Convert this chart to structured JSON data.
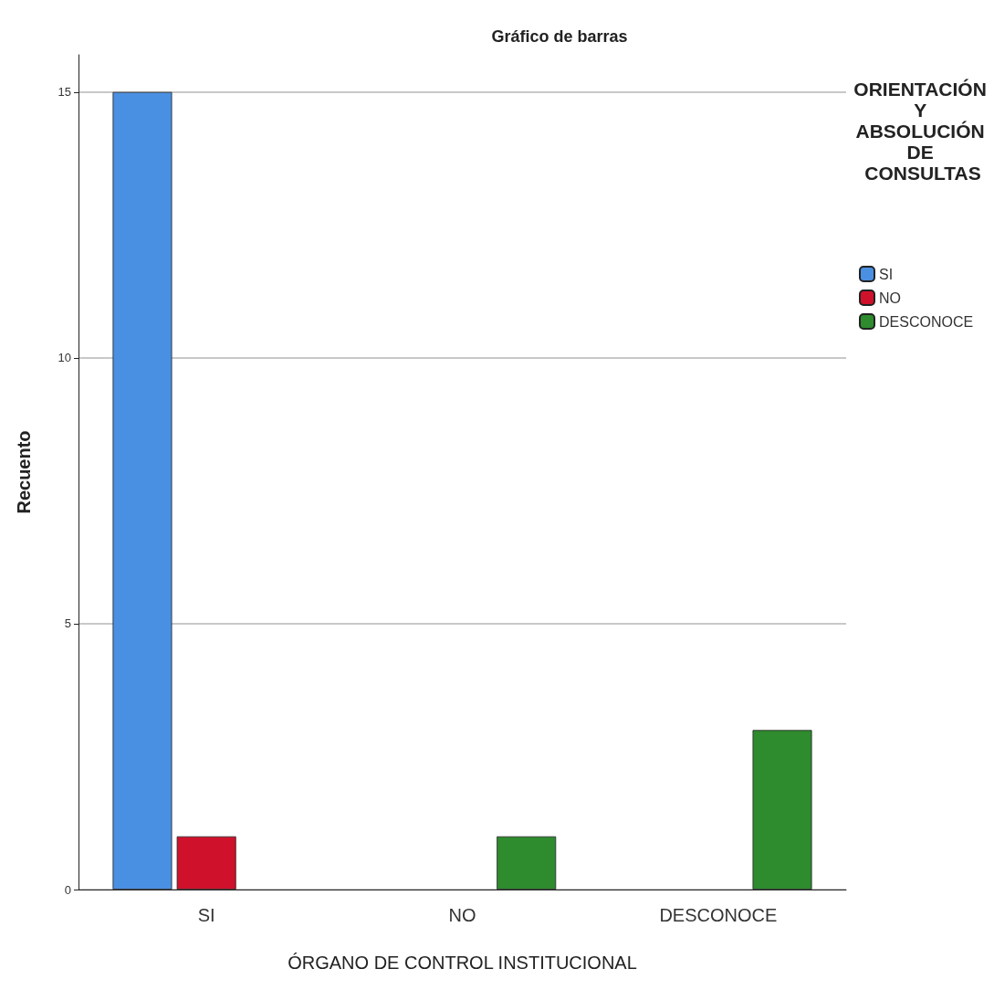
{
  "chart_data": {
    "type": "bar",
    "title": "Gráfico de barras",
    "xlabel": "ÓRGANO DE CONTROL INSTITUCIONAL",
    "ylabel": "Recuento",
    "legend_title": "ORIENTACIÓN Y ABSOLUCIÓN DE CONSULTAS",
    "categories": [
      "SI",
      "NO",
      "DESCONOCE"
    ],
    "series": [
      {
        "name": "SI",
        "color": "#4a90e2",
        "values": [
          15,
          null,
          null
        ]
      },
      {
        "name": "NO",
        "color": "#d0112b",
        "values": [
          1,
          null,
          null
        ]
      },
      {
        "name": "DESCONOCE",
        "color": "#2e8b2e",
        "values": [
          null,
          1,
          3
        ]
      }
    ],
    "ylim": [
      0,
      15.7
    ],
    "yticks": [
      0,
      5,
      10,
      15
    ],
    "grid": "y",
    "legend": "top right"
  }
}
